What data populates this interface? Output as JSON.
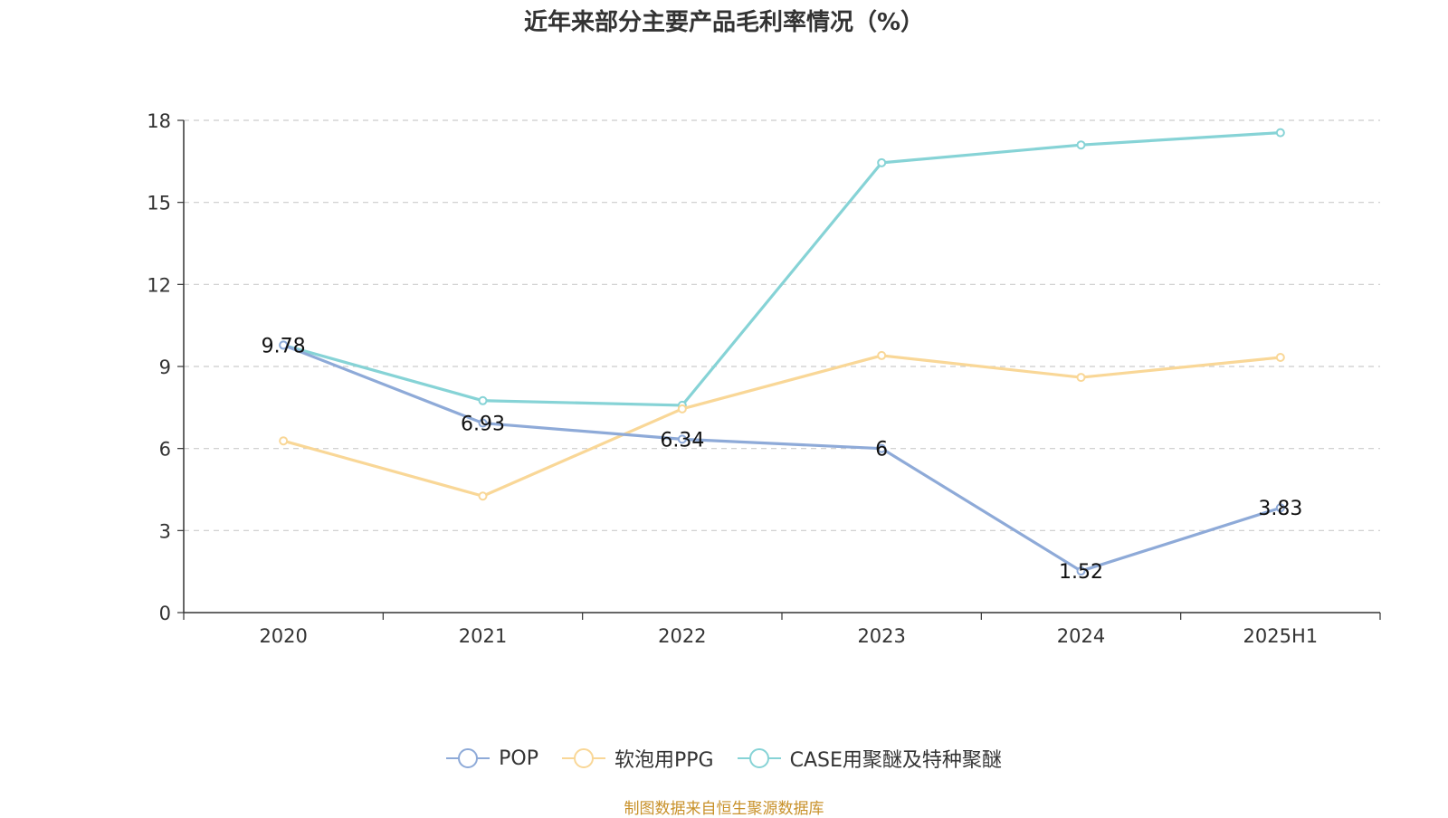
{
  "title": "近年来部分主要产品毛利率情况（%）",
  "source": "制图数据来自恒生聚源数据库",
  "chart_data": {
    "type": "line",
    "categories": [
      "2020",
      "2021",
      "2022",
      "2023",
      "2024",
      "2025H1"
    ],
    "ylim": [
      0,
      18
    ],
    "yticks": [
      0,
      3,
      6,
      9,
      12,
      15,
      18
    ],
    "grid": true,
    "legend_position": "bottom-center",
    "series": [
      {
        "name": "POP",
        "color": "#8eaad8",
        "values": [
          9.78,
          6.93,
          6.34,
          6,
          1.52,
          3.83
        ],
        "show_labels": true
      },
      {
        "name": "软泡用PPG",
        "color": "#f9d797",
        "values": [
          6.28,
          4.26,
          7.45,
          9.4,
          8.6,
          9.33
        ],
        "show_labels": false
      },
      {
        "name": "CASE用聚醚及特种聚醚",
        "color": "#86d3d6",
        "values": [
          9.78,
          7.75,
          7.58,
          16.45,
          17.1,
          17.55
        ],
        "show_labels": false
      }
    ]
  }
}
